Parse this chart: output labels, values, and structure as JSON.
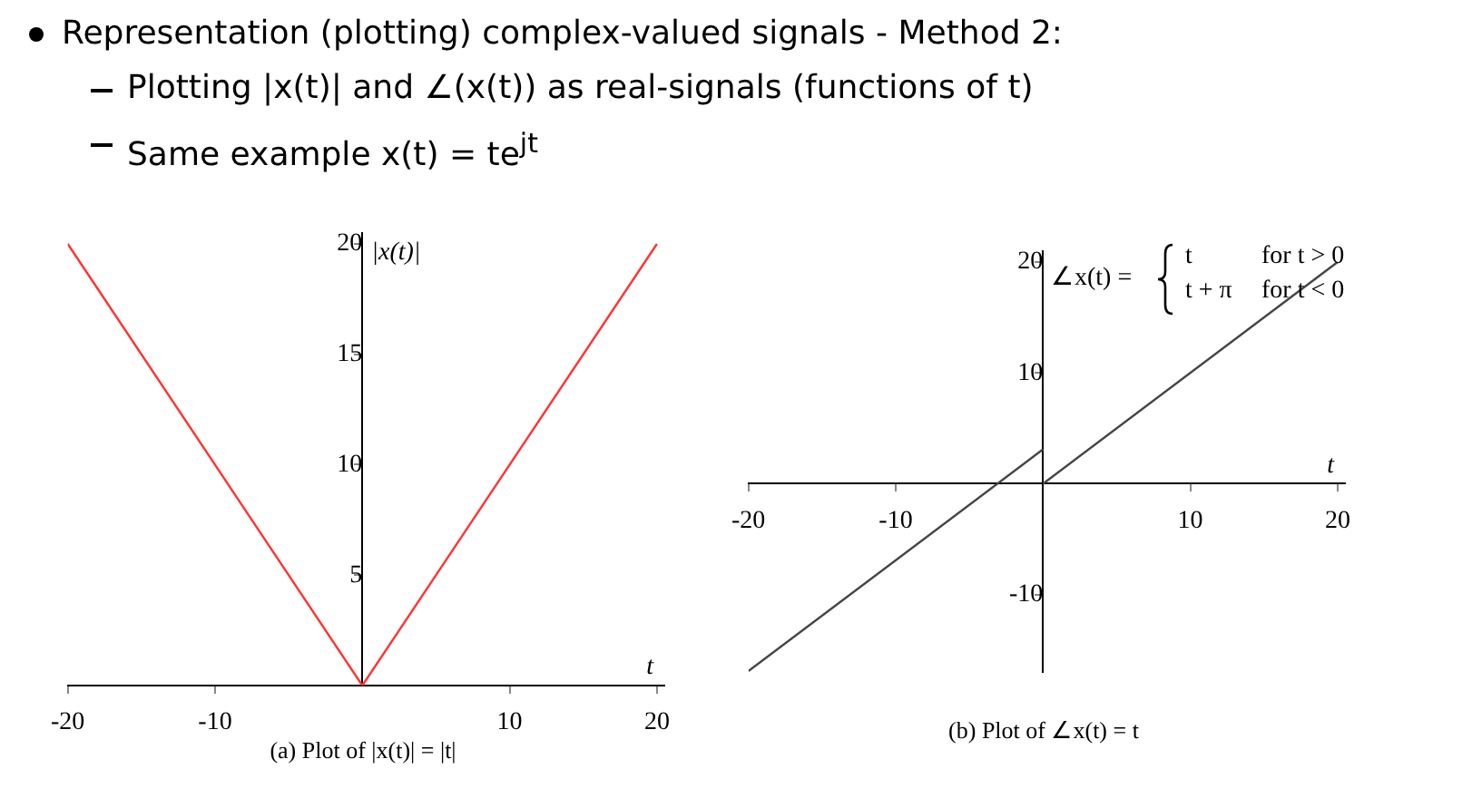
{
  "chart_data": [
    {
      "type": "line",
      "title": "Representation (plotting) complex-valued signals - Method 2:",
      "annotations": [
        "Plotting |x(t)| and ∠(x(t)) as real-signals (functions of t)",
        "Same example x(t) = te$^{jt}$",
        "(a) Plot of |x(t)| = |t|"
      ],
      "xlabel": "t",
      "ylabel": "|x(t)|",
      "series": [
        {
          "color": "#ff3333",
          "x": [
            -20,
            0,
            20
          ],
          "values": [
            20,
            0,
            20
          ]
        }
      ],
      "xlim": [
        -20,
        20.5
      ],
      "xticks": [
        -20,
        -10,
        10,
        20
      ],
      "ylim": [
        0,
        20.5
      ],
      "yticks": [
        5,
        10,
        15,
        20
      ],
      "grid": false,
      "legend": false
    },
    {
      "type": "line",
      "annotations": [
        "∠x(t) =",
        "t",
        "for t > 0",
        "t + π",
        "for t < 0",
        "(b) Plot of ∠x(t) = t"
      ],
      "xlabel": "t",
      "series": [
        {
          "color": "#444444",
          "x": [
            -20,
            0
          ],
          "values": [
            -16.9,
            3.1
          ]
        },
        {
          "color": "#444444",
          "x": [
            0,
            20
          ],
          "values": [
            0,
            20
          ]
        }
      ],
      "xlim": [
        -20,
        20.5
      ],
      "xticks": [
        -20,
        -10,
        10,
        20
      ],
      "ylim": [
        -17,
        21
      ],
      "yticks": [
        -10,
        10,
        20
      ],
      "grid": false,
      "legend": false
    }
  ]
}
